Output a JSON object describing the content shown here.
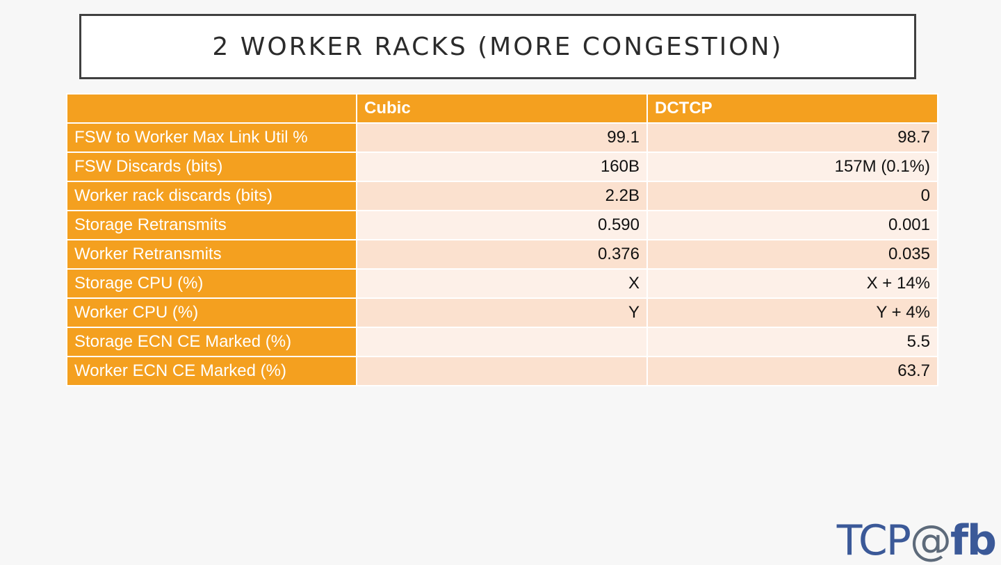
{
  "slide": {
    "title": "2 WORKER RACKS (MORE CONGESTION)"
  },
  "table": {
    "headers": [
      "",
      "Cubic",
      "DCTCP"
    ],
    "rows": [
      {
        "label": "FSW to Worker Max Link Util %",
        "cubic": "99.1",
        "dctcp": "98.7"
      },
      {
        "label": "FSW Discards (bits)",
        "cubic": "160B",
        "dctcp": "157M (0.1%)"
      },
      {
        "label": "Worker rack discards (bits)",
        "cubic": "2.2B",
        "dctcp": "0"
      },
      {
        "label": "Storage Retransmits",
        "cubic": "0.590",
        "dctcp": "0.001"
      },
      {
        "label": "Worker Retransmits",
        "cubic": "0.376",
        "dctcp": "0.035"
      },
      {
        "label": "Storage CPU (%)",
        "cubic": "X",
        "dctcp": "X + 14%"
      },
      {
        "label": "Worker CPU (%)",
        "cubic": "Y",
        "dctcp": "Y + 4%"
      },
      {
        "label": "Storage ECN CE Marked (%)",
        "cubic": "",
        "dctcp": "5.5"
      },
      {
        "label": "Worker ECN CE Marked (%)",
        "cubic": "",
        "dctcp": "63.7"
      }
    ]
  },
  "logo": {
    "tcp": "TCP",
    "at": "@",
    "fb": "fb"
  }
}
